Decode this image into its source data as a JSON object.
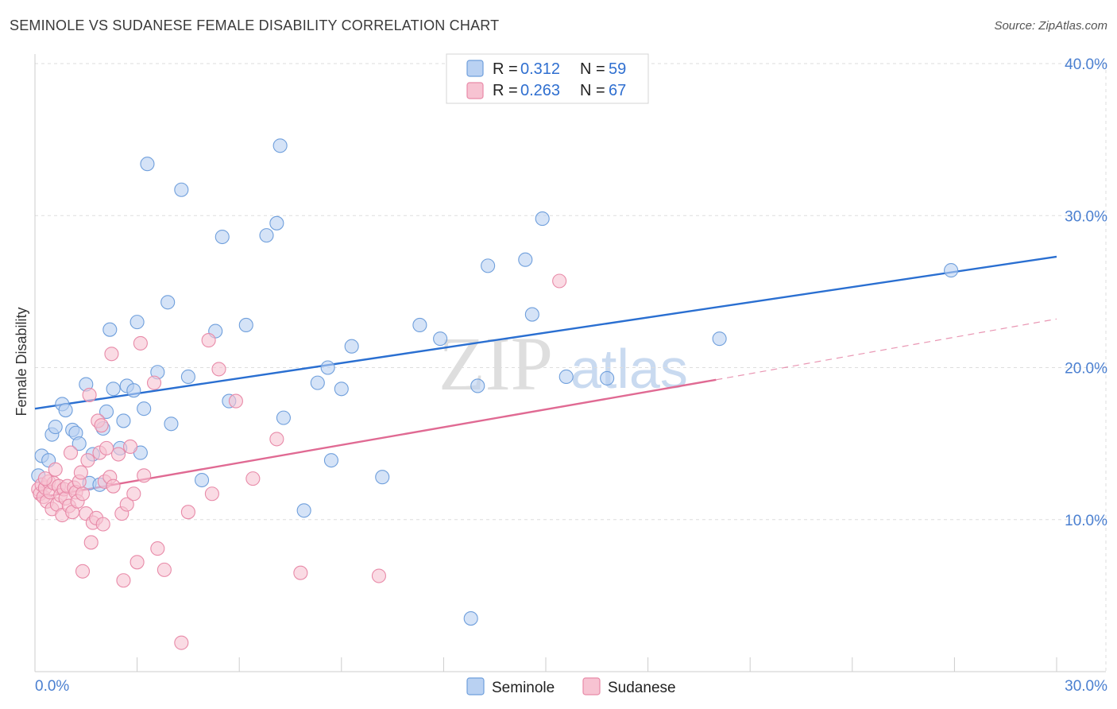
{
  "header": {
    "title": "SEMINOLE VS SUDANESE FEMALE DISABILITY CORRELATION CHART",
    "source": "Source: ZipAtlas.com"
  },
  "watermark": {
    "zip": "ZIP",
    "atlas": "atlas"
  },
  "legend": {
    "rows": [
      {
        "r_label": "R =",
        "r_value": "0.312",
        "n_label": "N =",
        "n_value": "59"
      },
      {
        "r_label": "R =",
        "r_value": "0.263",
        "n_label": "N =",
        "n_value": "67"
      }
    ]
  },
  "bottom_legend": {
    "seminole": "Seminole",
    "sudanese": "Sudanese"
  },
  "colors": {
    "seminole_fill": "#b9d1f2",
    "seminole_stroke": "#6f9fdc",
    "seminole_line": "#2a6fd1",
    "sudanese_fill": "#f7c3d2",
    "sudanese_stroke": "#e88aa8",
    "sudanese_line": "#e06a93",
    "grid": "#dddddd",
    "tick_text": "#4a7fd0"
  },
  "chart_data": {
    "type": "scatter",
    "title": "SEMINOLE VS SUDANESE FEMALE DISABILITY CORRELATION CHART",
    "xlabel": "",
    "ylabel": "Female Disability",
    "xlim": [
      0,
      30
    ],
    "ylim": [
      0,
      40
    ],
    "x_tick_labels": [
      "0.0%",
      "30.0%"
    ],
    "y_ticks": [
      10,
      20,
      30,
      40
    ],
    "y_tick_labels": [
      "10.0%",
      "20.0%",
      "30.0%",
      "40.0%"
    ],
    "grid": true,
    "legend_position": "top-center",
    "series": [
      {
        "name": "Seminole",
        "r": 0.312,
        "n": 59,
        "trend": {
          "x": [
            0,
            30
          ],
          "y": [
            17.3,
            27.3
          ]
        },
        "points": [
          [
            0.2,
            14.2
          ],
          [
            0.4,
            13.9
          ],
          [
            0.5,
            15.6
          ],
          [
            0.6,
            16.1
          ],
          [
            0.8,
            17.6
          ],
          [
            0.9,
            17.2
          ],
          [
            1.1,
            15.9
          ],
          [
            1.2,
            15.7
          ],
          [
            1.3,
            15.0
          ],
          [
            1.5,
            18.9
          ],
          [
            1.6,
            12.4
          ],
          [
            1.7,
            14.3
          ],
          [
            1.9,
            12.3
          ],
          [
            2.0,
            16.0
          ],
          [
            2.1,
            17.1
          ],
          [
            2.2,
            22.5
          ],
          [
            2.3,
            18.6
          ],
          [
            2.5,
            14.7
          ],
          [
            2.6,
            16.5
          ],
          [
            2.7,
            18.8
          ],
          [
            2.9,
            18.5
          ],
          [
            3.0,
            23.0
          ],
          [
            3.1,
            14.4
          ],
          [
            3.2,
            17.3
          ],
          [
            3.3,
            33.4
          ],
          [
            3.6,
            19.7
          ],
          [
            3.9,
            24.3
          ],
          [
            4.0,
            16.3
          ],
          [
            4.3,
            31.7
          ],
          [
            4.5,
            19.4
          ],
          [
            4.9,
            12.6
          ],
          [
            5.3,
            22.4
          ],
          [
            5.5,
            28.6
          ],
          [
            5.7,
            17.8
          ],
          [
            6.2,
            22.8
          ],
          [
            6.8,
            28.7
          ],
          [
            7.1,
            29.5
          ],
          [
            7.2,
            34.6
          ],
          [
            7.3,
            16.7
          ],
          [
            7.9,
            10.6
          ],
          [
            8.3,
            19.0
          ],
          [
            8.6,
            20.0
          ],
          [
            8.7,
            13.9
          ],
          [
            9.0,
            18.6
          ],
          [
            9.3,
            21.4
          ],
          [
            10.2,
            12.8
          ],
          [
            11.3,
            22.8
          ],
          [
            11.9,
            21.9
          ],
          [
            12.8,
            3.5
          ],
          [
            13.0,
            18.8
          ],
          [
            13.3,
            26.7
          ],
          [
            14.4,
            27.1
          ],
          [
            14.6,
            23.5
          ],
          [
            14.9,
            29.8
          ],
          [
            15.6,
            19.4
          ],
          [
            16.8,
            19.3
          ],
          [
            20.1,
            21.9
          ],
          [
            26.9,
            26.4
          ],
          [
            0.1,
            12.9
          ]
        ]
      },
      {
        "name": "Sudanese",
        "r": 0.263,
        "n": 67,
        "trend": {
          "x": [
            0,
            20
          ],
          "y": [
            11.4,
            19.2
          ]
        },
        "trend_dashed": {
          "x": [
            20,
            30
          ],
          "y": [
            19.2,
            23.2
          ]
        },
        "points": [
          [
            0.1,
            12.0
          ],
          [
            0.15,
            11.7
          ],
          [
            0.2,
            12.3
          ],
          [
            0.25,
            11.5
          ],
          [
            0.3,
            12.1
          ],
          [
            0.35,
            11.2
          ],
          [
            0.4,
            12.5
          ],
          [
            0.45,
            11.8
          ],
          [
            0.5,
            10.7
          ],
          [
            0.55,
            12.4
          ],
          [
            0.6,
            13.3
          ],
          [
            0.65,
            11.0
          ],
          [
            0.7,
            12.2
          ],
          [
            0.75,
            11.6
          ],
          [
            0.8,
            10.3
          ],
          [
            0.85,
            12.0
          ],
          [
            0.9,
            11.4
          ],
          [
            0.95,
            12.2
          ],
          [
            1.0,
            10.9
          ],
          [
            1.05,
            14.4
          ],
          [
            1.1,
            10.5
          ],
          [
            1.15,
            12.1
          ],
          [
            1.2,
            11.8
          ],
          [
            1.25,
            11.2
          ],
          [
            1.3,
            12.5
          ],
          [
            1.35,
            13.1
          ],
          [
            1.4,
            11.7
          ],
          [
            1.5,
            10.4
          ],
          [
            1.55,
            13.9
          ],
          [
            1.6,
            18.2
          ],
          [
            1.65,
            8.5
          ],
          [
            1.7,
            9.8
          ],
          [
            1.8,
            10.1
          ],
          [
            1.85,
            16.5
          ],
          [
            1.9,
            14.4
          ],
          [
            1.95,
            16.2
          ],
          [
            2.0,
            9.7
          ],
          [
            2.05,
            12.5
          ],
          [
            2.1,
            14.7
          ],
          [
            2.2,
            12.8
          ],
          [
            2.25,
            20.9
          ],
          [
            2.3,
            12.2
          ],
          [
            2.45,
            14.3
          ],
          [
            2.55,
            10.4
          ],
          [
            2.6,
            6.0
          ],
          [
            2.7,
            11.0
          ],
          [
            2.8,
            14.8
          ],
          [
            2.9,
            11.7
          ],
          [
            3.0,
            7.2
          ],
          [
            3.1,
            21.6
          ],
          [
            3.2,
            12.9
          ],
          [
            3.5,
            19.0
          ],
          [
            3.6,
            8.1
          ],
          [
            3.8,
            6.7
          ],
          [
            4.3,
            1.9
          ],
          [
            4.5,
            10.5
          ],
          [
            5.1,
            21.8
          ],
          [
            5.2,
            11.7
          ],
          [
            5.4,
            19.9
          ],
          [
            5.9,
            17.8
          ],
          [
            6.4,
            12.7
          ],
          [
            7.1,
            15.3
          ],
          [
            7.8,
            6.5
          ],
          [
            10.1,
            6.3
          ],
          [
            15.4,
            25.7
          ],
          [
            1.4,
            6.6
          ],
          [
            0.3,
            12.7
          ]
        ]
      }
    ]
  }
}
